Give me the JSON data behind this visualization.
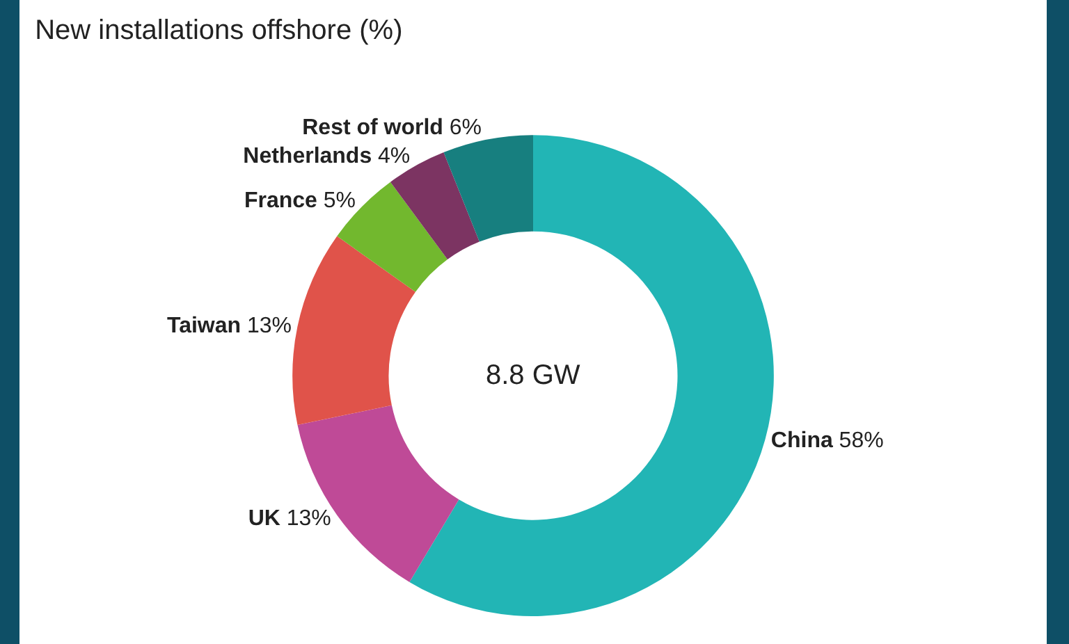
{
  "chart_data": {
    "type": "donut",
    "title": "New installations offshore (%)",
    "categories": [
      "China",
      "UK",
      "Taiwan",
      "France",
      "Netherlands",
      "Rest of world"
    ],
    "values": [
      58,
      13,
      13,
      5,
      4,
      6
    ],
    "value_labels": [
      "58%",
      "13%",
      "13%",
      "5%",
      "4%",
      "6%"
    ],
    "colors": [
      "#22b5b5",
      "#bf4a97",
      "#e0534a",
      "#72b82e",
      "#7c3462",
      "#177f7f"
    ],
    "annotations": [
      "8.8 GW"
    ],
    "legend": false
  }
}
